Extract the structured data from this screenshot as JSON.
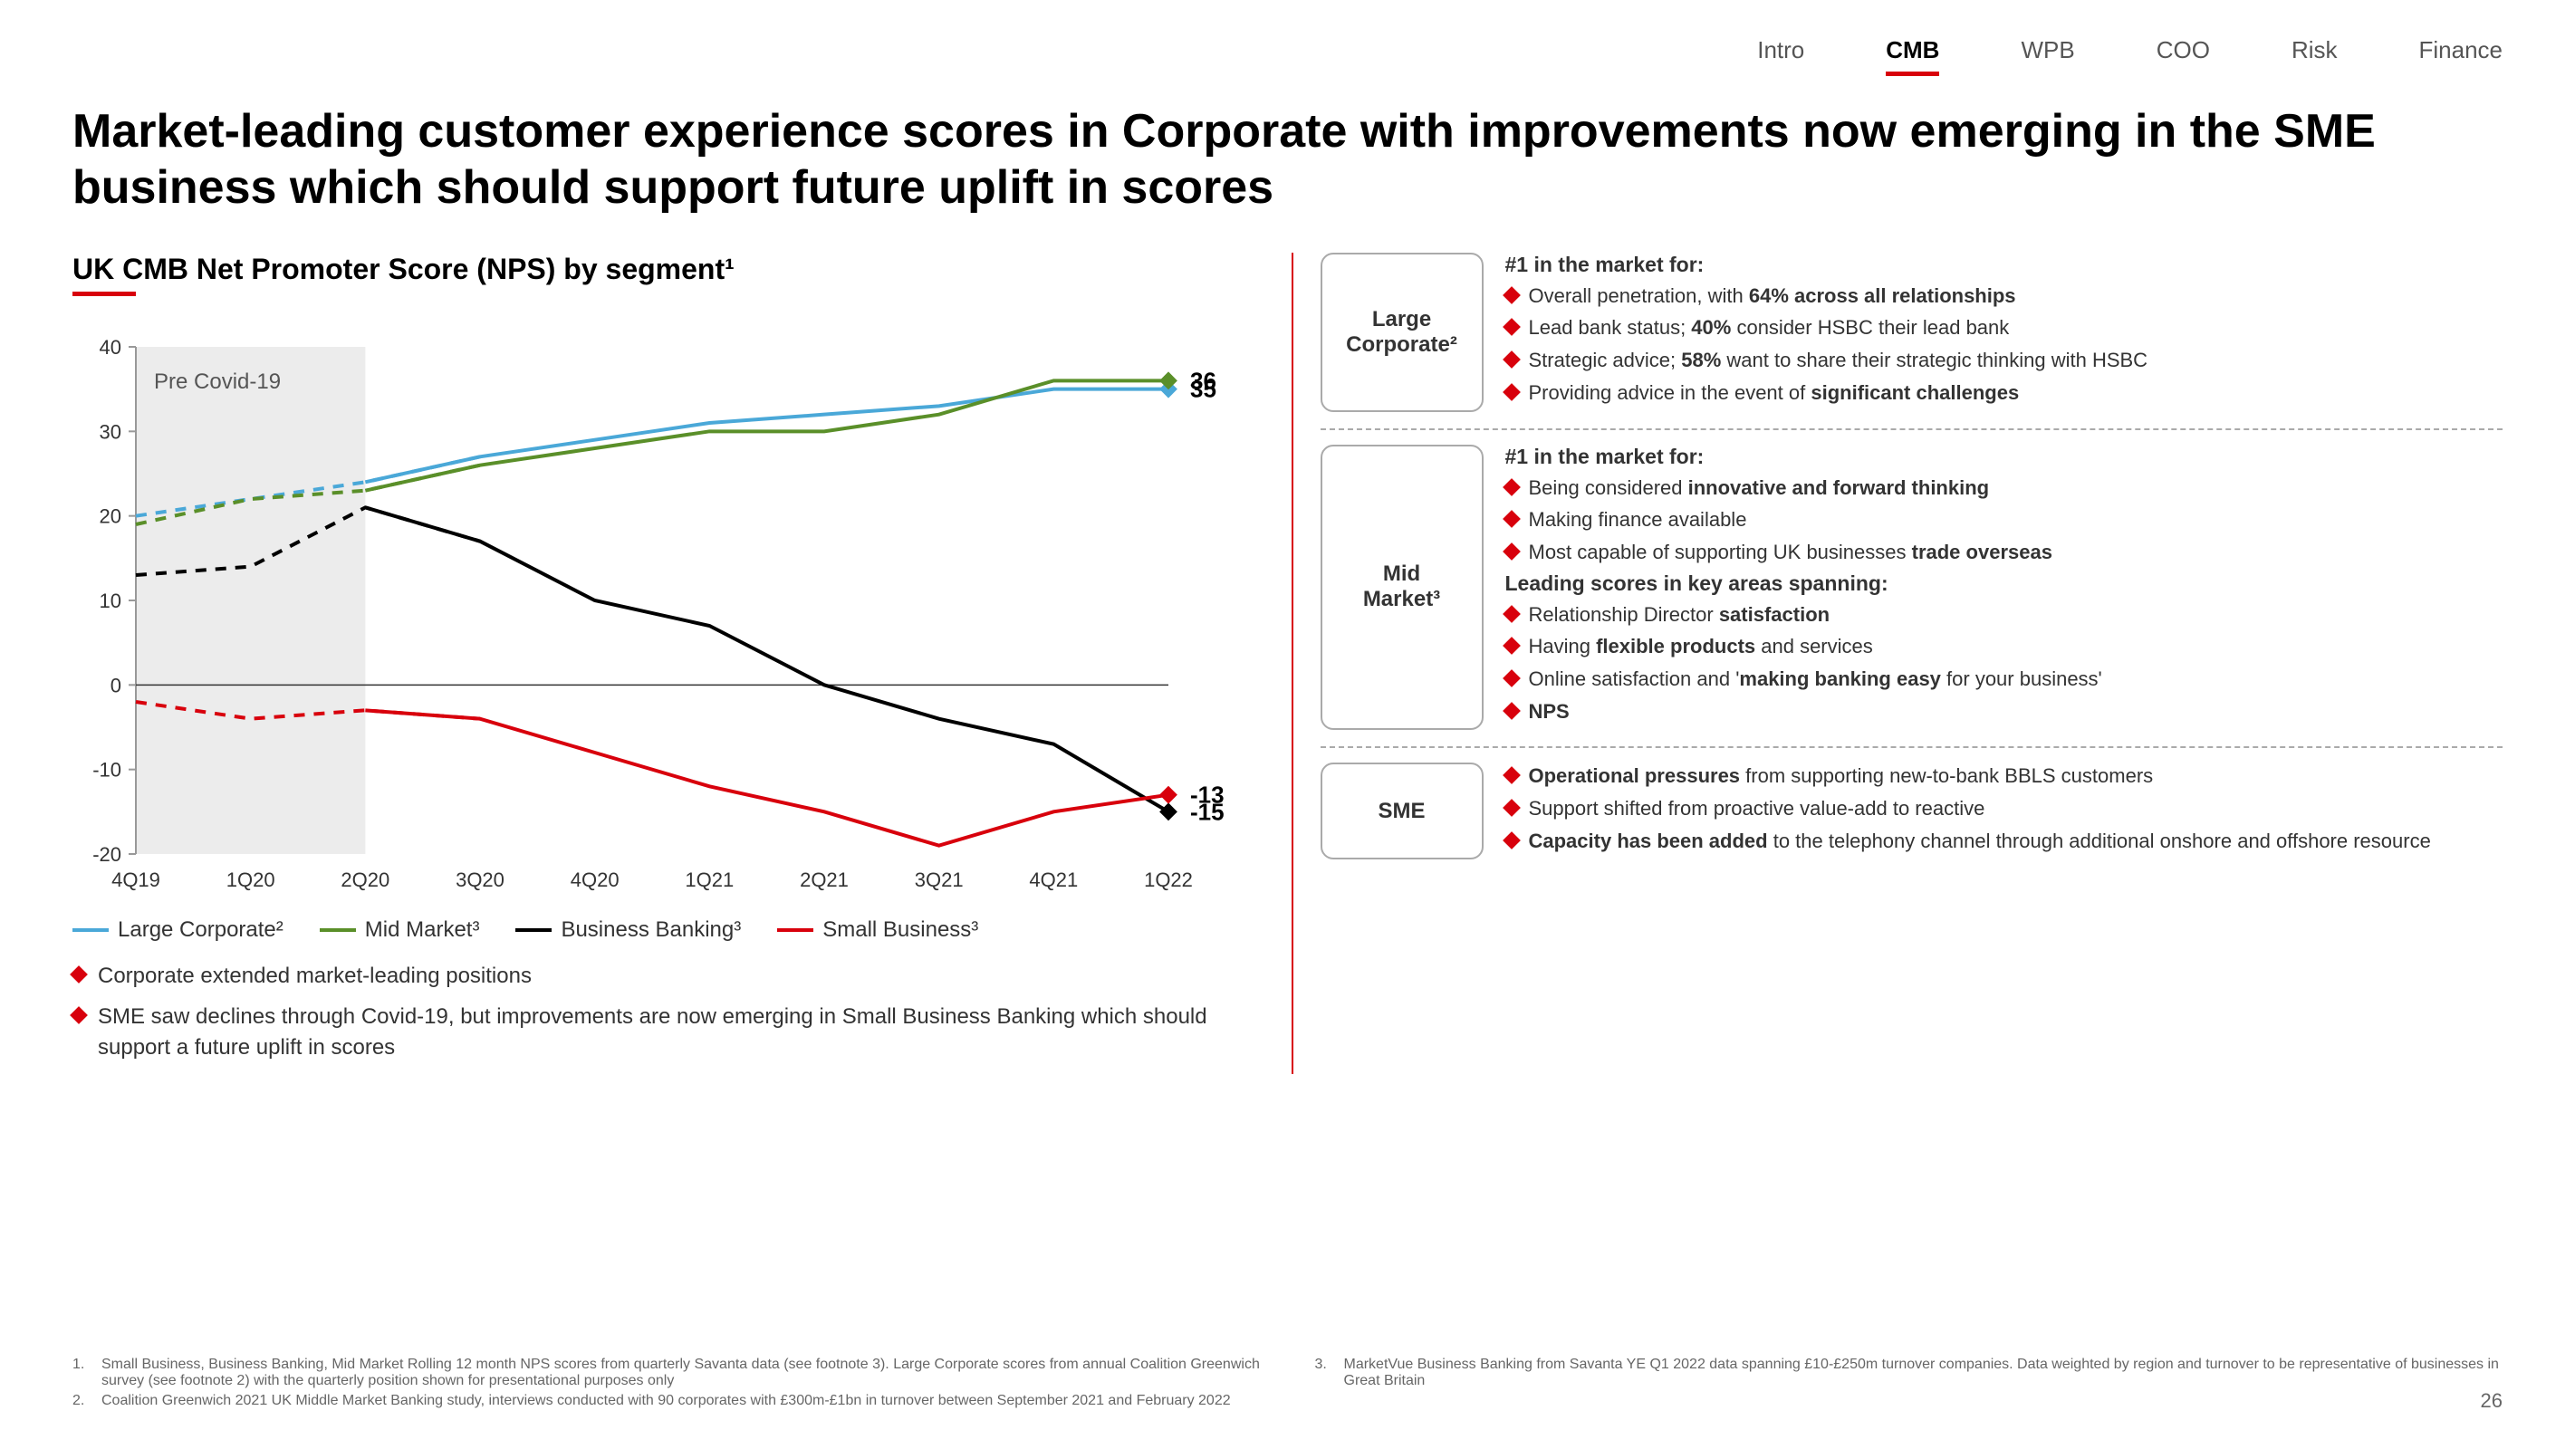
{
  "nav": {
    "tabs": [
      "Intro",
      "CMB",
      "WPB",
      "COO",
      "Risk",
      "Finance"
    ],
    "active_index": 1
  },
  "title": "Market-leading customer experience scores in Corporate with improvements now emerging in the SME business which should support future uplift in scores",
  "chart_title": "UK CMB Net Promoter Score (NPS) by segment¹",
  "chart": {
    "type": "line",
    "x_labels": [
      "4Q19",
      "1Q20",
      "2Q20",
      "3Q20",
      "4Q20",
      "1Q21",
      "2Q21",
      "3Q21",
      "4Q21",
      "1Q22"
    ],
    "ylim": [
      -20,
      40
    ],
    "ytick_step": 10,
    "yticks": [
      -20,
      -10,
      0,
      10,
      20,
      30,
      40
    ],
    "pre_covid_label": "Pre Covid-19",
    "pre_covid_end_index": 2,
    "series": [
      {
        "name": "Large Corporate²",
        "color": "#4aa8d8",
        "values": [
          20,
          22,
          24,
          27,
          29,
          31,
          32,
          33,
          35,
          35
        ],
        "end_label": "35",
        "dashed_until": 3
      },
      {
        "name": "Mid Market³",
        "color": "#5a8f29",
        "values": [
          19,
          22,
          23,
          26,
          28,
          30,
          30,
          32,
          36,
          36
        ],
        "end_label": "36",
        "dashed_until": 3
      },
      {
        "name": "Business Banking³",
        "color": "#000000",
        "values": [
          13,
          14,
          21,
          17,
          10,
          7,
          0,
          -4,
          -7,
          -15
        ],
        "end_label": "-15",
        "dashed_until": 3
      },
      {
        "name": "Small Business³",
        "color": "#d8000c",
        "values": [
          -2,
          -4,
          -3,
          -4,
          -8,
          -12,
          -15,
          -19,
          -15,
          -13
        ],
        "end_label": "-13",
        "dashed_until": 3
      }
    ],
    "axis_color": "#999999",
    "grid_color": "#cccccc",
    "background_color": "#ffffff",
    "pre_covid_fill": "#ececec",
    "label_fontsize": 22,
    "end_label_fontsize": 26
  },
  "left_bullets": [
    "Corporate extended market-leading positions",
    "SME saw declines through Covid-19, but improvements are now emerging in Small Business Banking which should support a future uplift in scores"
  ],
  "segments": [
    {
      "label": "Large Corporate²",
      "blocks": [
        {
          "heading": "#1 in the market for:",
          "items": [
            "Overall penetration, with <b>64% across all relationships</b>",
            "Lead bank status; <b>40%</b> consider HSBC their lead bank",
            "Strategic advice; <b>58%</b> want to share their strategic thinking with HSBC",
            "Providing advice in the event of <b>significant challenges</b>"
          ]
        }
      ]
    },
    {
      "label": "Mid Market³",
      "blocks": [
        {
          "heading": "#1 in the market for:",
          "items": [
            "Being considered <b>innovative and forward thinking</b>",
            "Making finance available",
            "Most capable of supporting UK businesses <b>trade overseas</b>"
          ]
        },
        {
          "heading": "Leading scores in key areas spanning:",
          "items": [
            "Relationship Director <b>satisfaction</b>",
            "Having <b>flexible products</b> and services",
            "Online satisfaction and '<b>making banking easy</b> for your business'",
            "<b>NPS</b>"
          ]
        }
      ]
    },
    {
      "label": "SME",
      "blocks": [
        {
          "heading": "",
          "items": [
            "<b>Operational pressures</b> from supporting new-to-bank BBLS customers",
            "Support shifted from proactive value-add to reactive",
            "<b>Capacity has been added</b> to the telephony channel through additional onshore and offshore resource"
          ]
        }
      ]
    }
  ],
  "footnotes": [
    {
      "n": "1.",
      "text": "Small Business, Business Banking, Mid Market Rolling 12 month NPS scores from quarterly Savanta data (see footnote 3). Large Corporate scores from annual Coalition Greenwich survey (see footnote 2) with the quarterly position shown for presentational purposes only"
    },
    {
      "n": "2.",
      "text": "Coalition Greenwich 2021 UK Middle Market Banking study, interviews conducted with 90 corporates with £300m-£1bn in turnover between September 2021 and February 2022"
    },
    {
      "n": "3.",
      "text": "MarketVue Business Banking from Savanta YE Q1 2022 data spanning £10-£250m turnover companies. Data weighted by region and turnover to be representative of businesses in Great Britain"
    }
  ],
  "page_number": "26"
}
